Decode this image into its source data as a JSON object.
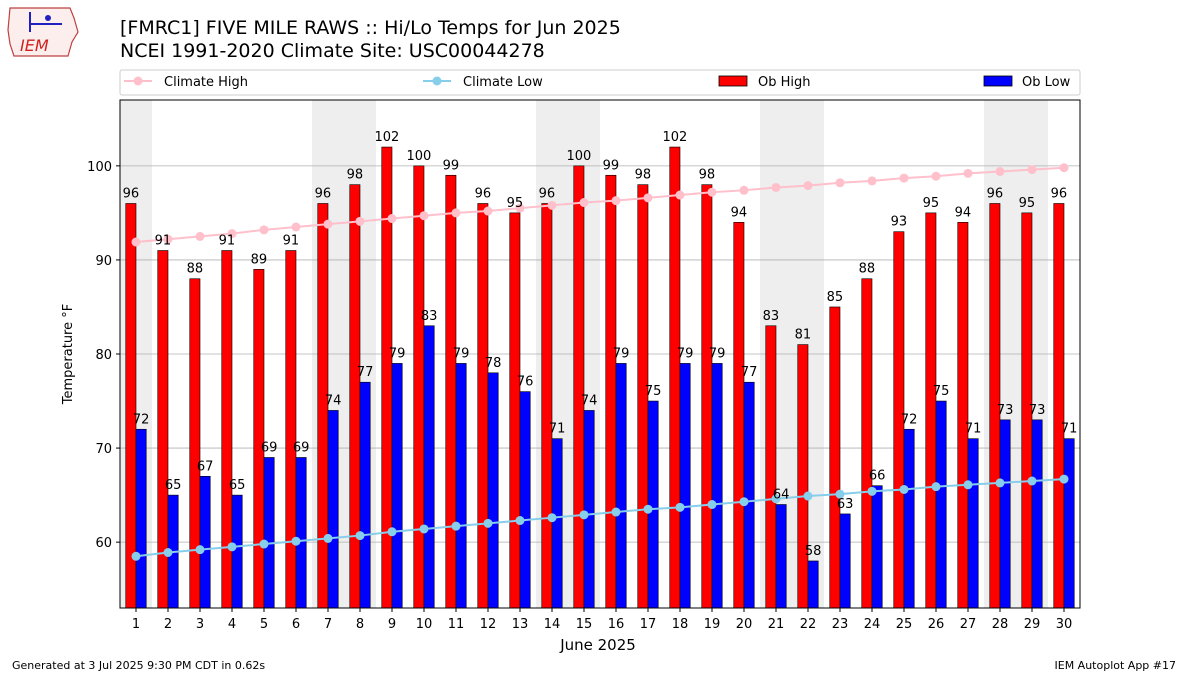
{
  "header": {
    "title_line1": "[FMRC1] FIVE MILE RAWS :: Hi/Lo Temps for Jun 2025",
    "title_line2": "NCEI 1991-2020 Climate Site: USC00044278"
  },
  "logo": {
    "text": "IEM",
    "icon": "iowa-weather-station-logo"
  },
  "footer": {
    "left": "Generated at 3 Jul 2025 9:30 PM CDT in 0.62s",
    "right": "IEM Autoplot App #17"
  },
  "colors": {
    "ob_high": "#ff0000",
    "ob_low": "#0000ff",
    "climate_high": "#ffc0cb",
    "climate_low": "#87ceeb",
    "weekend_band": "#eeeeee",
    "grid": "#b0b0b0"
  },
  "chart_data": {
    "type": "bar",
    "xlabel": "June 2025",
    "ylabel": "Temperature °F",
    "ylim": [
      53,
      107
    ],
    "yticks": [
      60,
      70,
      80,
      90,
      100
    ],
    "grid": "horizontal",
    "legend_placement": "top",
    "categories": [
      "1",
      "2",
      "3",
      "4",
      "5",
      "6",
      "7",
      "8",
      "9",
      "10",
      "11",
      "12",
      "13",
      "14",
      "15",
      "16",
      "17",
      "18",
      "19",
      "20",
      "21",
      "22",
      "23",
      "24",
      "25",
      "26",
      "27",
      "28",
      "29",
      "30"
    ],
    "weekend_days": [
      1,
      7,
      8,
      14,
      15,
      21,
      22,
      28,
      29
    ],
    "series": [
      {
        "name": "Climate High",
        "kind": "line",
        "values": [
          91.9,
          92.2,
          92.5,
          92.8,
          93.2,
          93.5,
          93.8,
          94.1,
          94.4,
          94.7,
          95.0,
          95.2,
          95.5,
          95.8,
          96.1,
          96.3,
          96.6,
          96.9,
          97.2,
          97.4,
          97.7,
          97.9,
          98.2,
          98.4,
          98.7,
          98.9,
          99.2,
          99.4,
          99.6,
          99.8
        ]
      },
      {
        "name": "Climate Low",
        "kind": "line",
        "values": [
          58.5,
          58.9,
          59.2,
          59.5,
          59.8,
          60.1,
          60.4,
          60.7,
          61.1,
          61.4,
          61.7,
          62.0,
          62.3,
          62.6,
          62.9,
          63.2,
          63.5,
          63.7,
          64.0,
          64.3,
          64.6,
          64.9,
          65.1,
          65.4,
          65.6,
          65.9,
          66.1,
          66.3,
          66.5,
          66.7
        ]
      },
      {
        "name": "Ob High",
        "kind": "bar",
        "values": [
          96,
          91,
          88,
          91,
          89,
          91,
          96,
          98,
          102,
          100,
          99,
          96,
          95,
          96,
          100,
          99,
          98,
          102,
          98,
          94,
          83,
          81,
          85,
          88,
          93,
          95,
          94,
          96,
          95,
          96
        ]
      },
      {
        "name": "Ob Low",
        "kind": "bar",
        "values": [
          72,
          65,
          67,
          65,
          69,
          69,
          74,
          77,
          79,
          83,
          79,
          78,
          76,
          71,
          74,
          79,
          75,
          79,
          79,
          77,
          64,
          58,
          63,
          66,
          72,
          75,
          71,
          73,
          73,
          71
        ]
      }
    ]
  }
}
